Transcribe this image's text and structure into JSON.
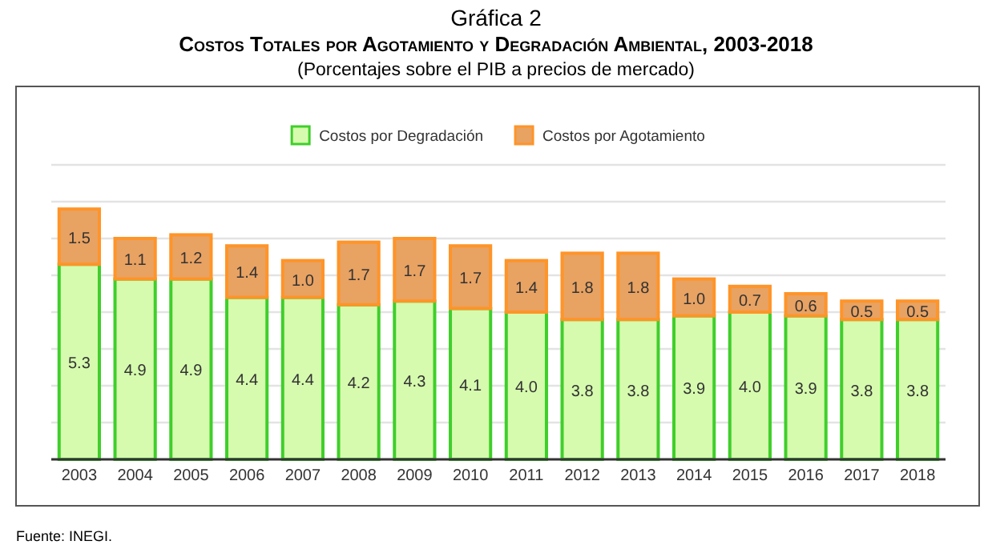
{
  "chart_data": {
    "type": "bar",
    "title": "Gráfica 2",
    "subtitle": "Costos Totales por Agotamiento y Degradación Ambiental, 2003-2018",
    "annotations": [
      "(Porcentajes sobre el PIB a precios de mercado)",
      "Fuente: INEGI."
    ],
    "categories": [
      "2003",
      "2004",
      "2005",
      "2006",
      "2007",
      "2008",
      "2009",
      "2010",
      "2011",
      "2012",
      "2013",
      "2014",
      "2015",
      "2016",
      "2017",
      "2018"
    ],
    "series": [
      {
        "name": "Costos por Degradación",
        "color": "#d6fbae",
        "values": [
          5.3,
          4.9,
          4.9,
          4.4,
          4.4,
          4.2,
          4.3,
          4.1,
          4.0,
          3.8,
          3.8,
          3.9,
          4.0,
          3.9,
          3.8,
          3.8
        ],
        "value_labels": [
          "5.3",
          "4.9",
          "4.9",
          "4.4",
          "4.4",
          "4.2",
          "4.3",
          "4.1",
          "4.0",
          "3.8",
          "3.8",
          "3.9",
          "4.0",
          "3.9",
          "3.8",
          "3.8"
        ]
      },
      {
        "name": "Costos por Agotamiento",
        "color": "#e8a262",
        "values": [
          1.5,
          1.1,
          1.2,
          1.4,
          1.0,
          1.7,
          1.7,
          1.7,
          1.4,
          1.8,
          1.8,
          1.0,
          0.7,
          0.6,
          0.5,
          0.5
        ],
        "value_labels": [
          "1.5",
          "1.1",
          "1.2",
          "1.4",
          "1.0",
          "1.7",
          "1.7",
          "1.7",
          "1.4",
          "1.8",
          "1.8",
          "1.0",
          "0.7",
          "0.6",
          "0.5",
          "0.5"
        ]
      }
    ],
    "stacked": true,
    "ylim": [
      0,
      8
    ],
    "yticks": [
      {
        "value": 0,
        "label": null
      },
      {
        "value": 1,
        "label": null
      },
      {
        "value": 2,
        "label": null
      },
      {
        "value": 3,
        "label": null
      },
      {
        "value": 4,
        "label": null
      },
      {
        "value": 5,
        "label": null
      },
      {
        "value": 6,
        "label": null
      },
      {
        "value": 7,
        "label": null
      },
      {
        "value": 8,
        "label": null
      }
    ],
    "tick_labels": "x",
    "grid": "y",
    "legend": "top"
  }
}
